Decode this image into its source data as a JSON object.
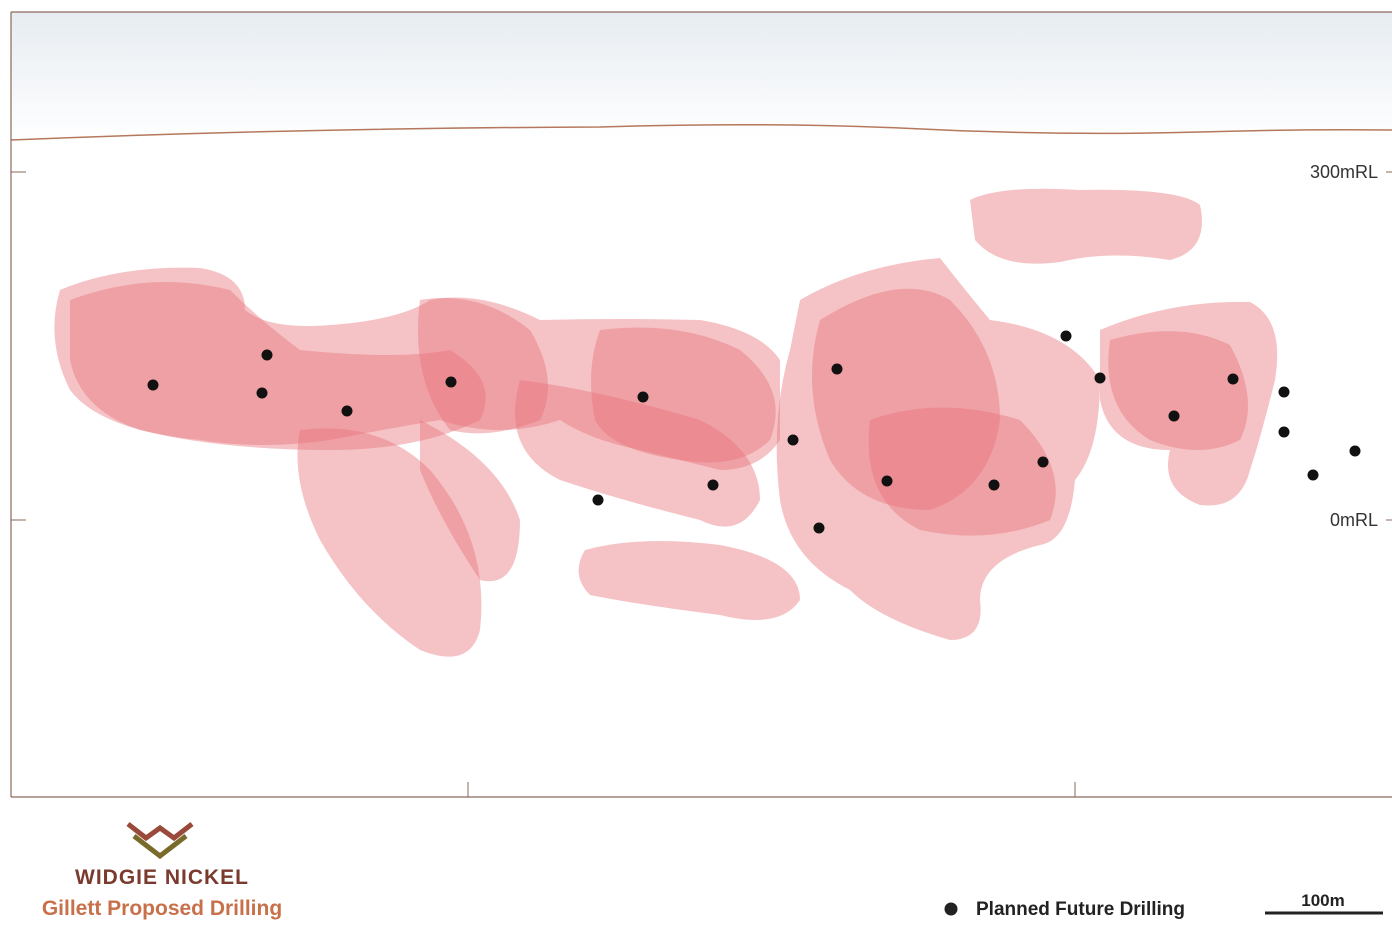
{
  "labels": {
    "rl_300": "300mRL",
    "rl_0": "0mRL"
  },
  "logo": {
    "company": "WIDGIE NICKEL"
  },
  "title": "Gillett Proposed Drilling",
  "legend": {
    "label": "Planned Future Drilling"
  },
  "scale_bar": {
    "label": "100m"
  }
}
